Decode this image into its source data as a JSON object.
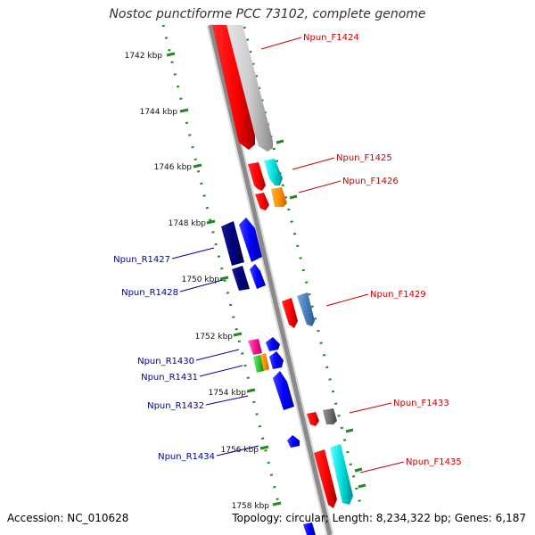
{
  "title": "Nostoc punctiforme PCC 73102, complete genome",
  "footer": {
    "accession": "Accession: NC_010628",
    "summary": "Topology: circular; Length: 8,234,322 bp; Genes: 6,187"
  },
  "ruler": {
    "ticks": [
      {
        "label": "1742 kbp",
        "kbp": 1742
      },
      {
        "label": "1744 kbp",
        "kbp": 1744
      },
      {
        "label": "1746 kbp",
        "kbp": 1746
      },
      {
        "label": "1748 kbp",
        "kbp": 1748
      },
      {
        "label": "1750 kbp",
        "kbp": 1750
      },
      {
        "label": "1752 kbp",
        "kbp": 1752
      },
      {
        "label": "1754 kbp",
        "kbp": 1754
      },
      {
        "label": "1756 kbp",
        "kbp": 1756
      },
      {
        "label": "1758 kbp",
        "kbp": 1758
      }
    ]
  },
  "genes": [
    {
      "label": "Npun_F1424",
      "strand": "forward"
    },
    {
      "label": "Npun_F1425",
      "strand": "forward"
    },
    {
      "label": "Npun_F1426",
      "strand": "forward"
    },
    {
      "label": "Npun_R1427",
      "strand": "reverse"
    },
    {
      "label": "Npun_R1428",
      "strand": "reverse"
    },
    {
      "label": "Npun_F1429",
      "strand": "forward"
    },
    {
      "label": "Npun_R1430",
      "strand": "reverse"
    },
    {
      "label": "Npun_R1431",
      "strand": "reverse"
    },
    {
      "label": "Npun_R1432",
      "strand": "reverse"
    },
    {
      "label": "Npun_F1433",
      "strand": "forward"
    },
    {
      "label": "Npun_R1434",
      "strand": "reverse"
    },
    {
      "label": "Npun_F1435",
      "strand": "forward"
    }
  ],
  "colors": {
    "forward_label": "#cc0000",
    "reverse_label": "#000099",
    "backbone": "#888888",
    "ruler_tick": "#228822"
  }
}
